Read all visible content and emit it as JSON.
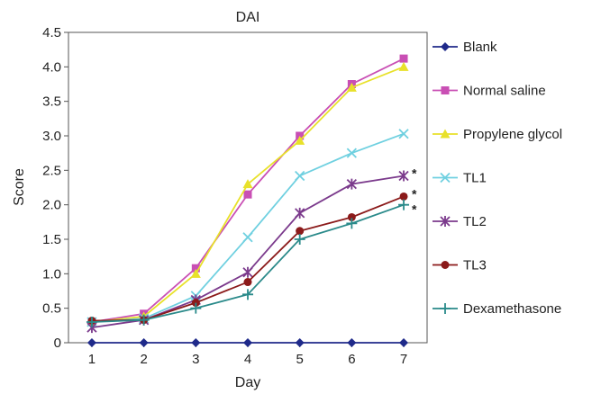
{
  "chart_data": {
    "type": "line",
    "title": "DAI",
    "xlabel": "Day",
    "ylabel": "Score",
    "x": [
      1,
      2,
      3,
      4,
      5,
      6,
      7
    ],
    "ylim": [
      0,
      4.5
    ],
    "yticks": [
      "0",
      "0.5",
      "1.0",
      "1.5",
      "2.0",
      "2.5",
      "3.0",
      "3.5",
      "4.0",
      "4.5"
    ],
    "xticks": [
      "1",
      "2",
      "3",
      "4",
      "5",
      "6",
      "7"
    ],
    "grid": false,
    "legend": "right",
    "series": [
      {
        "name": "Blank",
        "marker": "diamond",
        "color": "#1f2a8a",
        "values": [
          0,
          0,
          0,
          0,
          0,
          0,
          0
        ]
      },
      {
        "name": "Normal saline",
        "marker": "square",
        "color": "#c94fb4",
        "values": [
          0.3,
          0.42,
          1.08,
          2.15,
          3.0,
          3.75,
          4.12
        ]
      },
      {
        "name": "Propylene glycol",
        "marker": "triangle",
        "color": "#e8e12a",
        "values": [
          0.3,
          0.38,
          1.0,
          2.3,
          2.93,
          3.7,
          4.0
        ]
      },
      {
        "name": "TL1",
        "marker": "x",
        "color": "#6fd0e0",
        "values": [
          0.3,
          0.35,
          0.68,
          1.53,
          2.42,
          2.75,
          3.03
        ]
      },
      {
        "name": "TL2",
        "marker": "asterisk",
        "color": "#7b3a8c",
        "values": [
          0.22,
          0.33,
          0.62,
          1.02,
          1.88,
          2.3,
          2.42
        ]
      },
      {
        "name": "TL3",
        "marker": "circle",
        "color": "#8b1a1a",
        "values": [
          0.32,
          0.33,
          0.58,
          0.88,
          1.62,
          1.82,
          2.12
        ]
      },
      {
        "name": "Dexamethasone",
        "marker": "plus",
        "color": "#2a8a8a",
        "values": [
          0.3,
          0.33,
          0.5,
          0.7,
          1.5,
          1.73,
          2.0
        ]
      }
    ],
    "annotations": [
      {
        "text": "*",
        "x": 7,
        "y": 2.42
      },
      {
        "text": "*",
        "x": 7,
        "y": 2.12
      },
      {
        "text": "*",
        "x": 7,
        "y": 2.0
      }
    ]
  }
}
